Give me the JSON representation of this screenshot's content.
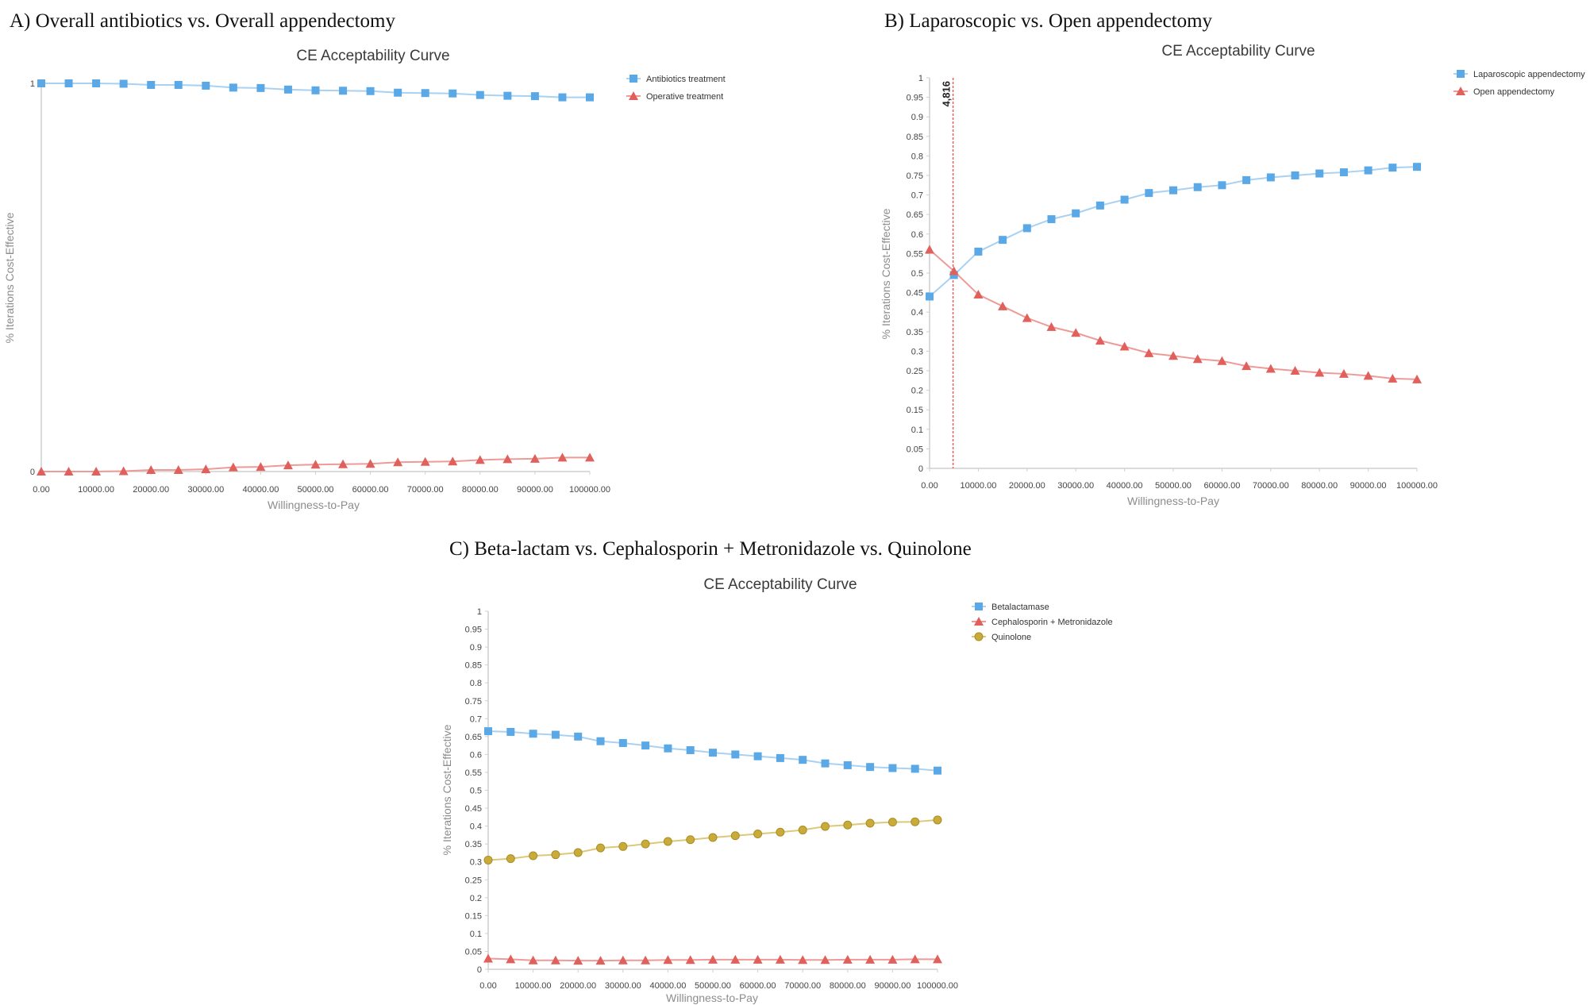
{
  "figure": {
    "panels": [
      {
        "heading": "A) Overall antibiotics  vs. Overall appendectomy"
      },
      {
        "heading": "B) Laparoscopic vs. Open appendectomy"
      },
      {
        "heading": "C) Beta-lactam vs. Cephalosporin  + Metronidazole  vs. Quinolone"
      }
    ]
  },
  "colors": {
    "blue": "#5aa9e6",
    "blue_line": "#a9d1f2",
    "red": "#e0605c",
    "red_line": "#ee9b98",
    "gold": "#c9ab3a",
    "gold_line": "#ddc877",
    "axis": "#cfcfcf",
    "threshold": "#e0605c"
  },
  "chart_data": [
    {
      "type": "line",
      "title": "CE Acceptability Curve",
      "xlabel": "Willingness-to-Pay",
      "ylabel": "% Iterations Cost-Effective",
      "xlim": [
        0,
        100000
      ],
      "ylim": [
        0,
        1
      ],
      "x_tick_labels": [
        "0.00",
        "10000.00",
        "20000.00",
        "30000.00",
        "40000.00",
        "50000.00",
        "60000.00",
        "70000.00",
        "80000.00",
        "90000.00",
        "100000.00"
      ],
      "y_tick_labels": [
        "0",
        "1"
      ],
      "legend_position": "top-right",
      "x": [
        0,
        5000,
        10000,
        15000,
        20000,
        25000,
        30000,
        35000,
        40000,
        45000,
        50000,
        55000,
        60000,
        65000,
        70000,
        75000,
        80000,
        85000,
        90000,
        95000,
        100000
      ],
      "series": [
        {
          "name": "Antibiotics treatment",
          "marker": "square",
          "color": "blue",
          "values": [
            1.0,
            1.0,
            1.0,
            0.999,
            0.996,
            0.996,
            0.994,
            0.989,
            0.988,
            0.984,
            0.982,
            0.981,
            0.98,
            0.976,
            0.975,
            0.974,
            0.97,
            0.968,
            0.967,
            0.964,
            0.964
          ]
        },
        {
          "name": "Operative treatment",
          "marker": "triangle",
          "color": "red",
          "values": [
            0.0,
            0.0,
            0.0,
            0.001,
            0.004,
            0.004,
            0.006,
            0.011,
            0.012,
            0.016,
            0.018,
            0.019,
            0.02,
            0.024,
            0.025,
            0.026,
            0.03,
            0.032,
            0.033,
            0.036,
            0.036
          ]
        }
      ]
    },
    {
      "type": "line",
      "title": "CE Acceptability Curve",
      "xlabel": "Willingness-to-Pay",
      "ylabel": "% Iterations Cost-Effective",
      "xlim": [
        0,
        100000
      ],
      "ylim": [
        0,
        1
      ],
      "x_tick_labels": [
        "0.00",
        "10000.00",
        "20000.00",
        "30000.00",
        "40000.00",
        "50000.00",
        "60000.00",
        "70000.00",
        "80000.00",
        "90000.00",
        "100000.00"
      ],
      "y_tick_labels": [
        "0",
        "0.05",
        "0.1",
        "0.15",
        "0.2",
        "0.25",
        "0.3",
        "0.35",
        "0.4",
        "0.45",
        "0.5",
        "0.55",
        "0.6",
        "0.65",
        "0.7",
        "0.75",
        "0.8",
        "0.85",
        "0.9",
        "0.95",
        "1"
      ],
      "legend_position": "top-right",
      "threshold": {
        "x": 4816,
        "label": "4,816"
      },
      "x": [
        0,
        5000,
        10000,
        15000,
        20000,
        25000,
        30000,
        35000,
        40000,
        45000,
        50000,
        55000,
        60000,
        65000,
        70000,
        75000,
        80000,
        85000,
        90000,
        95000,
        100000
      ],
      "series": [
        {
          "name": "Laparoscopic appendectomy",
          "marker": "square",
          "color": "blue",
          "values": [
            0.44,
            0.495,
            0.555,
            0.585,
            0.615,
            0.638,
            0.653,
            0.673,
            0.688,
            0.705,
            0.712,
            0.72,
            0.725,
            0.738,
            0.745,
            0.75,
            0.755,
            0.758,
            0.763,
            0.77,
            0.772
          ]
        },
        {
          "name": "Open appendectomy",
          "marker": "triangle",
          "color": "red",
          "values": [
            0.56,
            0.505,
            0.445,
            0.415,
            0.385,
            0.362,
            0.347,
            0.327,
            0.312,
            0.295,
            0.288,
            0.28,
            0.275,
            0.262,
            0.255,
            0.25,
            0.245,
            0.242,
            0.237,
            0.23,
            0.228
          ]
        }
      ]
    },
    {
      "type": "line",
      "title": "CE Acceptability Curve",
      "xlabel": "Willingness-to-Pay",
      "ylabel": "% Iterations Cost-Effective",
      "xlim": [
        0,
        100000
      ],
      "ylim": [
        0,
        1
      ],
      "x_tick_labels": [
        "0.00",
        "10000.00",
        "20000.00",
        "30000.00",
        "40000.00",
        "50000.00",
        "60000.00",
        "70000.00",
        "80000.00",
        "90000.00",
        "100000.00"
      ],
      "y_tick_labels": [
        "0",
        "0.05",
        "0.1",
        "0.15",
        "0.2",
        "0.25",
        "0.3",
        "0.35",
        "0.4",
        "0.45",
        "0.5",
        "0.55",
        "0.6",
        "0.65",
        "0.7",
        "0.75",
        "0.8",
        "0.85",
        "0.9",
        "0.95",
        "1"
      ],
      "legend_position": "top-right",
      "x": [
        0,
        5000,
        10000,
        15000,
        20000,
        25000,
        30000,
        35000,
        40000,
        45000,
        50000,
        55000,
        60000,
        65000,
        70000,
        75000,
        80000,
        85000,
        90000,
        95000,
        100000
      ],
      "series": [
        {
          "name": "Betalactamase",
          "marker": "square",
          "color": "blue",
          "values": [
            0.665,
            0.663,
            0.658,
            0.655,
            0.65,
            0.637,
            0.632,
            0.625,
            0.617,
            0.612,
            0.605,
            0.6,
            0.595,
            0.59,
            0.585,
            0.575,
            0.57,
            0.565,
            0.562,
            0.56,
            0.555
          ]
        },
        {
          "name": "Cephalosporin + Metronidazole",
          "marker": "triangle",
          "color": "red",
          "values": [
            0.03,
            0.028,
            0.025,
            0.025,
            0.024,
            0.024,
            0.025,
            0.025,
            0.026,
            0.026,
            0.027,
            0.027,
            0.027,
            0.027,
            0.026,
            0.026,
            0.027,
            0.027,
            0.027,
            0.028,
            0.028
          ]
        },
        {
          "name": "Quinolone",
          "marker": "circle",
          "color": "gold",
          "values": [
            0.305,
            0.309,
            0.317,
            0.32,
            0.326,
            0.339,
            0.343,
            0.35,
            0.357,
            0.362,
            0.368,
            0.373,
            0.378,
            0.383,
            0.389,
            0.399,
            0.403,
            0.408,
            0.411,
            0.412,
            0.417
          ]
        }
      ]
    }
  ]
}
